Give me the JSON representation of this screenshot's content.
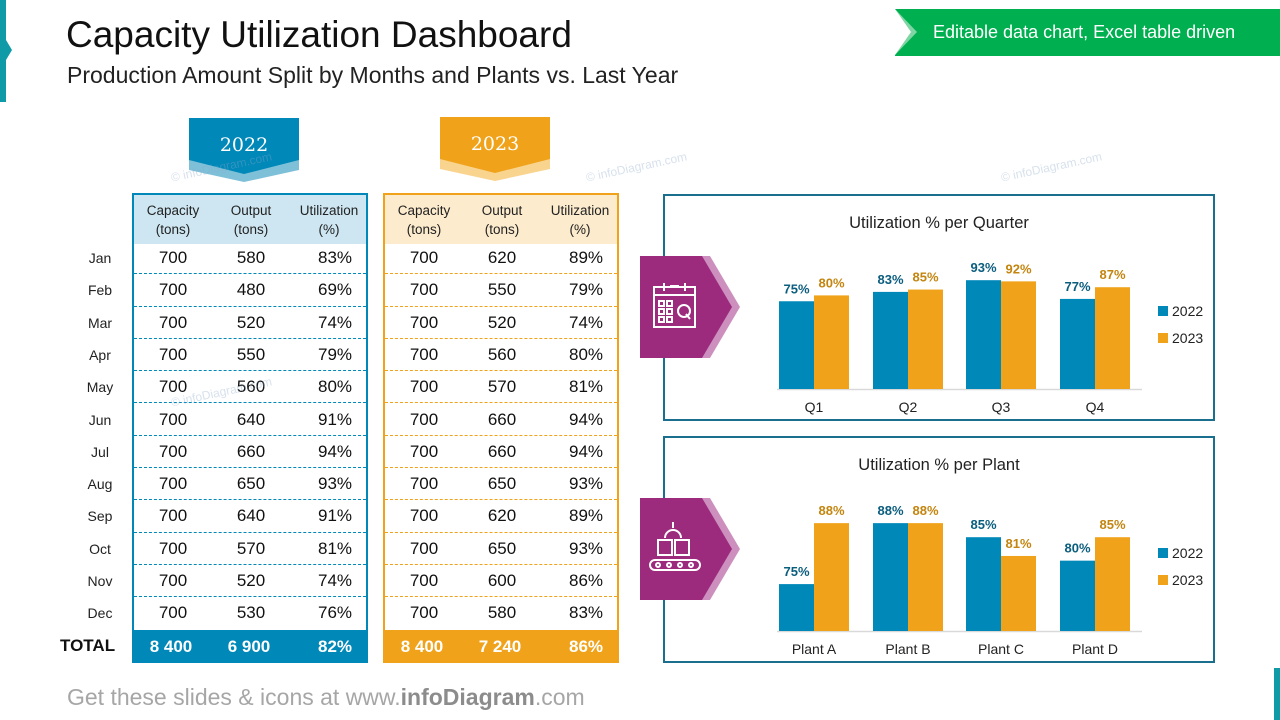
{
  "header": {
    "title": "Capacity Utilization Dashboard",
    "subtitle": "Production Amount Split by Months and Plants vs. Last Year",
    "badge": "Editable data chart, Excel table driven"
  },
  "colors": {
    "y2022": "#0088b9",
    "y2023": "#f0a31a",
    "accent_purple": "#9c2a7d",
    "badge_green": "#00b050",
    "teal": "#0e9aa7"
  },
  "table": {
    "months": [
      "Jan",
      "Feb",
      "Mar",
      "Apr",
      "May",
      "Jun",
      "Jul",
      "Aug",
      "Sep",
      "Oct",
      "Nov",
      "Dec"
    ],
    "columns": [
      "Capacity\n(tons)",
      "Output\n(tons)",
      "Utilization\n(%)"
    ],
    "col_labels": {
      "capacity": "Capacity",
      "capacity_unit": "(tons)",
      "output": "Output",
      "output_unit": "(tons)",
      "util": "Utilization",
      "util_unit": "(%)"
    },
    "total_label": "TOTAL",
    "years": [
      {
        "year": "2022",
        "rows": [
          [
            "700",
            "580",
            "83%"
          ],
          [
            "700",
            "480",
            "69%"
          ],
          [
            "700",
            "520",
            "74%"
          ],
          [
            "700",
            "550",
            "79%"
          ],
          [
            "700",
            "560",
            "80%"
          ],
          [
            "700",
            "640",
            "91%"
          ],
          [
            "700",
            "660",
            "94%"
          ],
          [
            "700",
            "650",
            "93%"
          ],
          [
            "700",
            "640",
            "91%"
          ],
          [
            "700",
            "570",
            "81%"
          ],
          [
            "700",
            "520",
            "74%"
          ],
          [
            "700",
            "530",
            "76%"
          ]
        ],
        "total": [
          "8 400",
          "6 900",
          "82%"
        ]
      },
      {
        "year": "2023",
        "rows": [
          [
            "700",
            "620",
            "89%"
          ],
          [
            "700",
            "550",
            "79%"
          ],
          [
            "700",
            "520",
            "74%"
          ],
          [
            "700",
            "560",
            "80%"
          ],
          [
            "700",
            "570",
            "81%"
          ],
          [
            "700",
            "660",
            "94%"
          ],
          [
            "700",
            "660",
            "94%"
          ],
          [
            "700",
            "650",
            "93%"
          ],
          [
            "700",
            "620",
            "89%"
          ],
          [
            "700",
            "650",
            "93%"
          ],
          [
            "700",
            "600",
            "86%"
          ],
          [
            "700",
            "580",
            "83%"
          ]
        ],
        "total": [
          "8 400",
          "7 240",
          "86%"
        ]
      }
    ]
  },
  "icons": {
    "quarter": "calendar-q-icon",
    "plant": "conveyor-boxes-icon"
  },
  "chart_data": [
    {
      "type": "bar",
      "title": "Utilization % per Quarter",
      "categories": [
        "Q1",
        "Q2",
        "Q3",
        "Q4"
      ],
      "series": [
        {
          "name": "2022",
          "values": [
            75,
            83,
            93,
            77
          ]
        },
        {
          "name": "2023",
          "values": [
            80,
            85,
            92,
            87
          ]
        }
      ],
      "ylim": [
        0,
        100
      ],
      "grid": false,
      "legend": "right",
      "data_labels": true
    },
    {
      "type": "bar",
      "title": "Utilization % per Plant",
      "categories": [
        "Plant A",
        "Plant B",
        "Plant C",
        "Plant D"
      ],
      "series": [
        {
          "name": "2022",
          "values": [
            75,
            88,
            85,
            80
          ]
        },
        {
          "name": "2023",
          "values": [
            88,
            88,
            81,
            85
          ]
        }
      ],
      "ylim": [
        65,
        90
      ],
      "grid": false,
      "legend": "right",
      "data_labels": true
    }
  ],
  "footer": {
    "prefix": "Get these slides & icons at www.",
    "brand": "infoDiagram",
    "suffix": ".com"
  },
  "watermark": "© infoDiagram.com"
}
